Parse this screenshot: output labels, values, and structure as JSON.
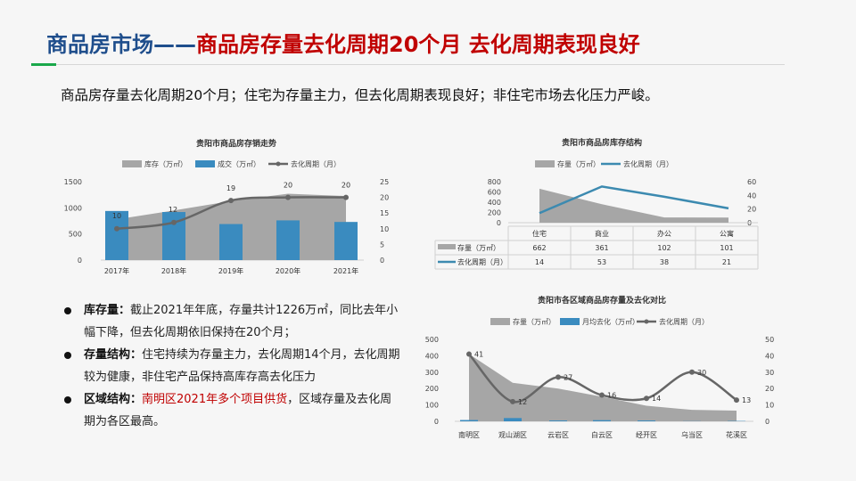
{
  "header": {
    "title_prefix": "商品房市场——",
    "title_main": "商品房存量去化周期20个月 去化周期表现良好"
  },
  "summary": "商品房存量去化周期20个月；住宅为存量主力，但去化周期表现良好；非住宅市场去化压力严峻。",
  "bullets": [
    {
      "label": "库存量：",
      "text": "截止2021年年底，存量共计1226万㎡，同比去年小幅下降，但去化周期依旧保持在20个月；"
    },
    {
      "label": "存量结构：",
      "text": "住宅持续为存量主力，去化周期14个月，去化周期较为健康，非住宅产品保持高库存高去化压力"
    },
    {
      "label": "区域结构：",
      "highlight": "南明区2021年多个项目供货",
      "text": "，区域存量及去化周期为各区最高。"
    }
  ],
  "colors": {
    "inventory": "#a6a6a6",
    "deal": "#3a8bbf",
    "cycle": "#666666",
    "cycle_blue": "#3c8ab0",
    "title_blue": "#1f4e8c",
    "title_red": "#c00000",
    "accent_green": "#1aa84a"
  },
  "chart_data": [
    {
      "type": "bar",
      "title": "贵阳市商品房存销走势",
      "categories": [
        "2017年",
        "2018年",
        "2019年",
        "2020年",
        "2021年"
      ],
      "series": [
        {
          "name": "库存（万㎡）",
          "type": "area",
          "axis": "left",
          "values": [
            780,
            950,
            1130,
            1270,
            1226
          ]
        },
        {
          "name": "成交（万㎡）",
          "type": "bar",
          "axis": "left",
          "values": [
            940,
            920,
            690,
            760,
            730
          ]
        },
        {
          "name": "去化周期（月）",
          "type": "line",
          "axis": "right",
          "values": [
            10,
            12,
            19,
            20,
            20
          ],
          "labels": [
            "10",
            "12",
            "19",
            "20",
            "20"
          ]
        }
      ],
      "y_left": {
        "range": [
          0,
          1500
        ],
        "ticks": [
          "1500",
          "1000",
          "500",
          "0"
        ]
      },
      "y_right": {
        "range": [
          0,
          25
        ],
        "ticks": [
          "25",
          "20",
          "15",
          "10",
          "5",
          "0"
        ]
      },
      "legend": "top"
    },
    {
      "type": "table",
      "title": "贵阳市商品房库存结构",
      "categories": [
        "住宅",
        "商业",
        "办公",
        "公寓"
      ],
      "series": [
        {
          "name": "存量（万㎡）",
          "type": "area",
          "axis": "left",
          "values": [
            662,
            361,
            102,
            101
          ],
          "labels": [
            "662",
            "361",
            "102",
            "101"
          ]
        },
        {
          "name": "去化周期（月）",
          "type": "line",
          "axis": "right",
          "values": [
            14,
            53,
            38,
            21
          ],
          "labels": [
            "14",
            "53",
            "38",
            "21"
          ]
        }
      ],
      "y_left": {
        "range": [
          0,
          800
        ],
        "ticks": [
          "800",
          "600",
          "400",
          "200",
          "0"
        ]
      },
      "y_right": {
        "range": [
          0,
          60
        ],
        "ticks": [
          "60",
          "40",
          "20",
          "0"
        ]
      },
      "legend": "top"
    },
    {
      "type": "bar",
      "title": "贵阳市各区域商品房存量及去化对比",
      "categories": [
        "南明区",
        "观山湖区",
        "云岩区",
        "白云区",
        "经开区",
        "乌当区",
        "花溪区"
      ],
      "series": [
        {
          "name": "存量（万㎡）",
          "type": "area",
          "axis": "left",
          "values": [
            410,
            235,
            200,
            150,
            95,
            70,
            65
          ]
        },
        {
          "name": "月均去化（万㎡）",
          "type": "bar",
          "axis": "left",
          "values": [
            8,
            20,
            5,
            7,
            5,
            1,
            2
          ]
        },
        {
          "name": "去化周期（月）",
          "type": "line",
          "axis": "right",
          "values": [
            41,
            12,
            27,
            16,
            14,
            30,
            13
          ],
          "labels": [
            "41",
            "12",
            "27",
            "16",
            "14",
            "30",
            "13"
          ]
        }
      ],
      "y_left": {
        "range": [
          0,
          500
        ],
        "ticks": [
          "500",
          "400",
          "300",
          "200",
          "100",
          "0"
        ]
      },
      "y_right": {
        "range": [
          0,
          50
        ],
        "ticks": [
          "50",
          "40",
          "30",
          "20",
          "10",
          "0"
        ]
      },
      "legend": "top"
    }
  ]
}
